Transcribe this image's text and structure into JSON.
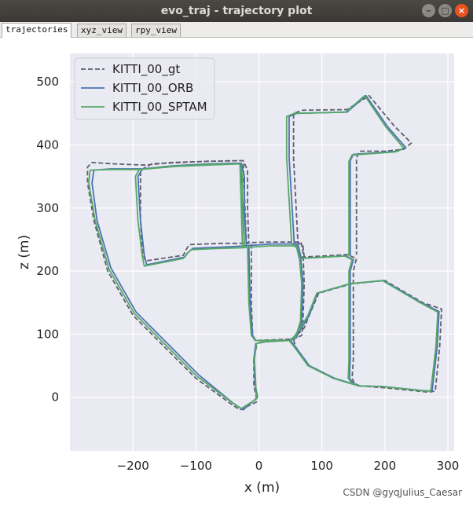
{
  "window": {
    "title": "evo_traj - trajectory plot"
  },
  "tabs": [
    {
      "label": "trajectories",
      "active": true
    },
    {
      "label": "xyz_view",
      "active": false
    },
    {
      "label": "rpy_view",
      "active": false
    }
  ],
  "watermark": "CSDN @gyqJulius_Caesar",
  "colors": {
    "plot_bg": "#eaeaf2",
    "grid": "#ffffff",
    "gt": "#5f5f6f",
    "orb": "#4c72b0",
    "sptam": "#55a868"
  },
  "chart_data": {
    "type": "line",
    "title": "",
    "xlabel": "x (m)",
    "ylabel": "z (m)",
    "xlim": [
      -300,
      310
    ],
    "ylim": [
      -85,
      545
    ],
    "xticks": [
      -200,
      -100,
      0,
      100,
      200,
      300
    ],
    "yticks": [
      0,
      100,
      200,
      300,
      400,
      500
    ],
    "grid": true,
    "legend_position": "top-left",
    "series": [
      {
        "name": "KITTI_00_gt",
        "style": "dashed",
        "points": [
          [
            -3,
            -7
          ],
          [
            -30,
            -20
          ],
          [
            -45,
            -10
          ],
          [
            -100,
            30
          ],
          [
            -150,
            80
          ],
          [
            -200,
            130
          ],
          [
            -240,
            200
          ],
          [
            -262,
            280
          ],
          [
            -272,
            340
          ],
          [
            -272,
            365
          ],
          [
            -265,
            372
          ],
          [
            -230,
            370
          ],
          [
            -180,
            368
          ],
          [
            -140,
            372
          ],
          [
            -80,
            374
          ],
          [
            -25,
            375
          ],
          [
            -18,
            360
          ],
          [
            -18,
            300
          ],
          [
            -16,
            244
          ],
          [
            -60,
            244
          ],
          [
            -110,
            242
          ],
          [
            -115,
            235
          ],
          [
            -120,
            225
          ],
          [
            -180,
            216
          ],
          [
            -185,
            230
          ],
          [
            -188,
            280
          ],
          [
            -188,
            360
          ],
          [
            -170,
            370
          ],
          [
            -80,
            374
          ],
          [
            -25,
            375
          ],
          [
            -20,
            245
          ],
          [
            20,
            246
          ],
          [
            67,
            246
          ],
          [
            70,
            230
          ],
          [
            72,
            180
          ],
          [
            70,
            120
          ],
          [
            68,
            98
          ],
          [
            55,
            92
          ],
          [
            10,
            90
          ],
          [
            -3,
            85
          ],
          [
            -8,
            60
          ],
          [
            -8,
            20
          ],
          [
            -3,
            -7
          ]
        ],
        "points2": [
          [
            -12,
            243
          ],
          [
            -12,
            150
          ],
          [
            -10,
            98
          ],
          [
            -5,
            90
          ],
          [
            55,
            92
          ],
          [
            62,
            100
          ],
          [
            72,
            110
          ],
          [
            80,
            130
          ],
          [
            95,
            165
          ],
          [
            148,
            180
          ],
          [
            200,
            185
          ],
          [
            260,
            150
          ],
          [
            290,
            140
          ],
          [
            287,
            80
          ],
          [
            280,
            10
          ],
          [
            270,
            8
          ],
          [
            200,
            15
          ],
          [
            160,
            18
          ],
          [
            120,
            30
          ],
          [
            80,
            50
          ],
          [
            58,
            80
          ],
          [
            55,
            92
          ]
        ],
        "points3": [
          [
            67,
            222
          ],
          [
            140,
            226
          ],
          [
            155,
            220
          ],
          [
            150,
            200
          ],
          [
            150,
            150
          ],
          [
            150,
            100
          ],
          [
            150,
            60
          ],
          [
            148,
            30
          ],
          [
            152,
            22
          ],
          [
            160,
            18
          ]
        ],
        "points4": [
          [
            72,
            222
          ],
          [
            70,
            240
          ],
          [
            62,
            245
          ],
          [
            55,
            380
          ],
          [
            55,
            450
          ],
          [
            70,
            455
          ],
          [
            140,
            456
          ],
          [
            175,
            478
          ],
          [
            215,
            430
          ],
          [
            242,
            403
          ],
          [
            230,
            393
          ],
          [
            200,
            390
          ],
          [
            160,
            390
          ],
          [
            155,
            380
          ],
          [
            155,
            300
          ],
          [
            155,
            226
          ]
        ]
      },
      {
        "name": "KITTI_00_ORB",
        "style": "solid",
        "points": [
          [
            -2,
            0
          ],
          [
            -25,
            -20
          ],
          [
            -40,
            -10
          ],
          [
            -95,
            35
          ],
          [
            -145,
            85
          ],
          [
            -195,
            135
          ],
          [
            -235,
            205
          ],
          [
            -257,
            280
          ],
          [
            -265,
            340
          ],
          [
            -262,
            360
          ],
          [
            -235,
            362
          ],
          [
            -185,
            362
          ],
          [
            -135,
            367
          ],
          [
            -80,
            370
          ],
          [
            -28,
            371
          ],
          [
            -23,
            350
          ],
          [
            -23,
            300
          ],
          [
            -20,
            240
          ],
          [
            -60,
            238
          ],
          [
            -105,
            236
          ],
          [
            -112,
            230
          ],
          [
            -118,
            222
          ],
          [
            -178,
            210
          ],
          [
            -182,
            225
          ],
          [
            -188,
            280
          ],
          [
            -192,
            350
          ],
          [
            -185,
            362
          ],
          [
            -130,
            367
          ],
          [
            -28,
            371
          ],
          [
            -23,
            240
          ],
          [
            20,
            243
          ],
          [
            62,
            243
          ],
          [
            66,
            225
          ],
          [
            70,
            180
          ],
          [
            68,
            120
          ],
          [
            60,
            95
          ],
          [
            50,
            90
          ],
          [
            10,
            88
          ],
          [
            -5,
            85
          ],
          [
            -8,
            60
          ],
          [
            -6,
            20
          ],
          [
            -2,
            0
          ]
        ],
        "points2": [
          [
            -16,
            240
          ],
          [
            -14,
            150
          ],
          [
            -10,
            98
          ],
          [
            -5,
            90
          ],
          [
            50,
            90
          ],
          [
            55,
            95
          ],
          [
            68,
            110
          ],
          [
            80,
            130
          ],
          [
            93,
            165
          ],
          [
            145,
            180
          ],
          [
            198,
            185
          ],
          [
            258,
            150
          ],
          [
            286,
            136
          ],
          [
            283,
            80
          ],
          [
            275,
            10
          ],
          [
            265,
            10
          ],
          [
            198,
            17
          ],
          [
            160,
            18
          ],
          [
            120,
            30
          ],
          [
            80,
            50
          ],
          [
            58,
            80
          ],
          [
            50,
            90
          ]
        ],
        "points3": [
          [
            67,
            220
          ],
          [
            138,
            224
          ],
          [
            150,
            218
          ],
          [
            145,
            200
          ],
          [
            145,
            150
          ],
          [
            145,
            100
          ],
          [
            145,
            60
          ],
          [
            144,
            30
          ],
          [
            150,
            22
          ],
          [
            160,
            18
          ]
        ],
        "points4": [
          [
            67,
            220
          ],
          [
            63,
            237
          ],
          [
            56,
            245
          ],
          [
            48,
            380
          ],
          [
            48,
            445
          ],
          [
            60,
            450
          ],
          [
            140,
            452
          ],
          [
            170,
            478
          ],
          [
            205,
            428
          ],
          [
            233,
            396
          ],
          [
            220,
            390
          ],
          [
            195,
            388
          ],
          [
            150,
            385
          ],
          [
            145,
            375
          ],
          [
            145,
            300
          ],
          [
            145,
            224
          ]
        ]
      },
      {
        "name": "KITTI_00_SPTAM",
        "style": "solid",
        "points": [
          [
            -4,
            -3
          ],
          [
            -28,
            -18
          ],
          [
            -43,
            -8
          ],
          [
            -98,
            33
          ],
          [
            -148,
            83
          ],
          [
            -198,
            133
          ],
          [
            -238,
            203
          ],
          [
            -260,
            280
          ],
          [
            -270,
            340
          ],
          [
            -268,
            360
          ],
          [
            -240,
            361
          ],
          [
            -190,
            361
          ],
          [
            -138,
            366
          ],
          [
            -82,
            369
          ],
          [
            -30,
            370
          ],
          [
            -26,
            350
          ],
          [
            -26,
            300
          ],
          [
            -23,
            237
          ],
          [
            -62,
            236
          ],
          [
            -107,
            234
          ],
          [
            -114,
            228
          ],
          [
            -120,
            220
          ],
          [
            -182,
            208
          ],
          [
            -185,
            223
          ],
          [
            -192,
            280
          ],
          [
            -196,
            350
          ],
          [
            -190,
            361
          ],
          [
            -132,
            366
          ],
          [
            -30,
            370
          ],
          [
            -26,
            237
          ],
          [
            18,
            240
          ],
          [
            60,
            240
          ],
          [
            64,
            224
          ],
          [
            68,
            180
          ],
          [
            66,
            120
          ],
          [
            58,
            95
          ],
          [
            48,
            90
          ],
          [
            8,
            88
          ],
          [
            -4,
            85
          ],
          [
            -7,
            60
          ],
          [
            -5,
            20
          ],
          [
            -4,
            -3
          ]
        ],
        "points2": [
          [
            -18,
            238
          ],
          [
            -16,
            150
          ],
          [
            -12,
            98
          ],
          [
            -6,
            90
          ],
          [
            48,
            90
          ],
          [
            55,
            95
          ],
          [
            66,
            110
          ],
          [
            78,
            130
          ],
          [
            92,
            165
          ],
          [
            144,
            180
          ],
          [
            196,
            185
          ],
          [
            256,
            150
          ],
          [
            284,
            135
          ],
          [
            281,
            80
          ],
          [
            273,
            10
          ],
          [
            263,
            10
          ],
          [
            196,
            17
          ],
          [
            158,
            18
          ],
          [
            118,
            30
          ],
          [
            78,
            50
          ],
          [
            56,
            80
          ],
          [
            48,
            90
          ]
        ],
        "points3": [
          [
            64,
            220
          ],
          [
            136,
            224
          ],
          [
            148,
            218
          ],
          [
            143,
            200
          ],
          [
            143,
            150
          ],
          [
            143,
            100
          ],
          [
            143,
            60
          ],
          [
            142,
            30
          ],
          [
            148,
            22
          ],
          [
            158,
            18
          ]
        ],
        "points4": [
          [
            64,
            220
          ],
          [
            60,
            237
          ],
          [
            52,
            243
          ],
          [
            44,
            380
          ],
          [
            44,
            445
          ],
          [
            56,
            450
          ],
          [
            138,
            452
          ],
          [
            168,
            478
          ],
          [
            202,
            428
          ],
          [
            230,
            395
          ],
          [
            217,
            389
          ],
          [
            192,
            387
          ],
          [
            148,
            384
          ],
          [
            143,
            374
          ],
          [
            143,
            300
          ],
          [
            143,
            224
          ]
        ]
      }
    ]
  }
}
